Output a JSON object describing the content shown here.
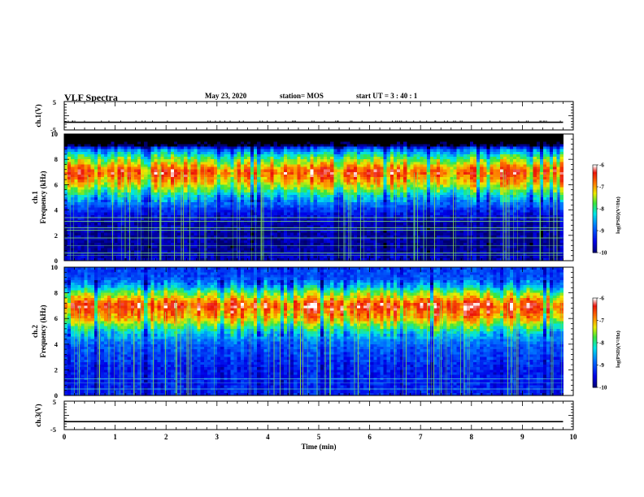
{
  "header": {
    "title": "VLF Spectra",
    "date": "May 23, 2020",
    "station": "station= MOS",
    "start": "start  UT =   3 : 40 : 1"
  },
  "chart_data": [
    {
      "type": "line",
      "ylabel": "ch.1(V)",
      "ylim": [
        -5,
        5
      ],
      "y_ticks": [
        "5",
        "-5"
      ],
      "xlim": [
        0,
        10
      ],
      "series": [
        {
          "x": [
            0,
            9.8
          ],
          "values": [
            -2.3,
            -2.3
          ]
        }
      ]
    },
    {
      "type": "heatmap",
      "ylabel": "ch.1\nFrequency (kHz)",
      "ylim": [
        0,
        10
      ],
      "y_ticks": [
        "0",
        "2",
        "4",
        "6",
        "8",
        "10"
      ],
      "xlim": [
        0,
        10
      ],
      "data_xmax": 9.8,
      "colorbar": {
        "label": "log(PSD)(V²/Hz)",
        "ticks": [
          "-6",
          "-7",
          "-8",
          "-9",
          "-10"
        ],
        "range": [
          -10,
          -6
        ]
      },
      "band_profile": [
        {
          "f": 0.0,
          "v": -9.6
        },
        {
          "f": 1.0,
          "v": -9.8
        },
        {
          "f": 3.0,
          "v": -9.7
        },
        {
          "f": 4.0,
          "v": -9.2
        },
        {
          "f": 5.0,
          "v": -8.4
        },
        {
          "f": 6.0,
          "v": -7.2
        },
        {
          "f": 7.0,
          "v": -6.5
        },
        {
          "f": 8.0,
          "v": -7.6
        },
        {
          "f": 8.8,
          "v": -8.8
        },
        {
          "f": 9.1,
          "v": -10.0
        },
        {
          "f": 10.0,
          "v": -10.0
        }
      ],
      "black_above_khz": 9.0
    },
    {
      "type": "heatmap",
      "ylabel": "ch.2\nFrequency (kHz)",
      "ylim": [
        0,
        10
      ],
      "y_ticks": [
        "0",
        "2",
        "4",
        "6",
        "8",
        "10"
      ],
      "xlim": [
        0,
        10
      ],
      "data_xmax": 9.8,
      "colorbar": {
        "label": "log(PSD)(V²/Hz)",
        "ticks": [
          "-6",
          "-7",
          "-8",
          "-9",
          "-10"
        ],
        "range": [
          -10,
          -6
        ]
      },
      "band_profile": [
        {
          "f": 0.0,
          "v": -9.3
        },
        {
          "f": 2.0,
          "v": -9.3
        },
        {
          "f": 4.0,
          "v": -8.9
        },
        {
          "f": 5.0,
          "v": -8.2
        },
        {
          "f": 6.0,
          "v": -7.0
        },
        {
          "f": 7.0,
          "v": -6.4
        },
        {
          "f": 8.0,
          "v": -7.6
        },
        {
          "f": 8.6,
          "v": -8.6
        },
        {
          "f": 9.2,
          "v": -9.0
        },
        {
          "f": 10.0,
          "v": -9.1
        }
      ]
    },
    {
      "type": "line",
      "ylabel": "ch.3(V)",
      "ylim": [
        -5,
        5
      ],
      "y_ticks": [
        "5",
        "-5"
      ],
      "xlim": [
        0,
        10
      ],
      "xlabel": "Time  (min)",
      "x_ticks": [
        "0",
        "1",
        "2",
        "3",
        "4",
        "5",
        "6",
        "7",
        "8",
        "9",
        "10"
      ],
      "series": [
        {
          "x": [
            0,
            9.8
          ],
          "values": [
            -2.2,
            -2.2
          ]
        }
      ]
    }
  ]
}
